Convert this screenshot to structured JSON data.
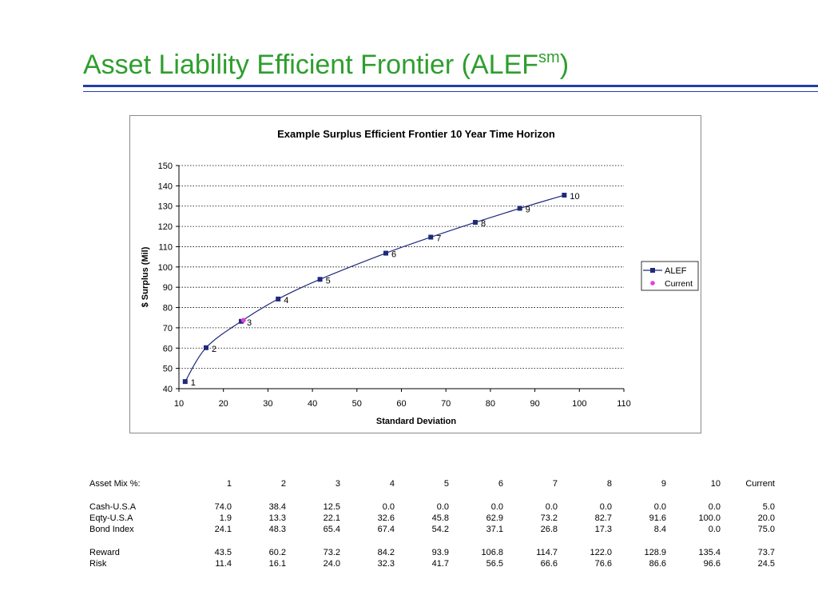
{
  "slide": {
    "title_main": "Asset Liability Efficient Frontier (ALEF",
    "title_sup": "sm",
    "title_end": ")"
  },
  "chart_data": {
    "type": "line",
    "title": "Example Surplus Efficient Frontier 10 Year Time Horizon",
    "xlabel": "Standard Deviation",
    "ylabel": "$ Surplus (Mil)",
    "xlim": [
      10,
      110
    ],
    "ylim": [
      40,
      150
    ],
    "xticks": [
      10,
      20,
      30,
      40,
      50,
      60,
      70,
      80,
      90,
      100,
      110
    ],
    "yticks": [
      40,
      50,
      60,
      70,
      80,
      90,
      100,
      110,
      120,
      130,
      140,
      150
    ],
    "grid": "horizontal-dotted",
    "legend_position": "right",
    "series": [
      {
        "name": "ALEF",
        "color": "#1f2a7a",
        "marker": "square",
        "labels": [
          "1",
          "2",
          "3",
          "4",
          "5",
          "6",
          "7",
          "8",
          "9",
          "10"
        ],
        "x": [
          11.4,
          16.1,
          24.0,
          32.3,
          41.7,
          56.5,
          66.6,
          76.6,
          86.6,
          96.6
        ],
        "y": [
          43.5,
          60.2,
          73.2,
          84.2,
          93.9,
          106.8,
          114.7,
          122.0,
          128.9,
          135.4
        ]
      },
      {
        "name": "Current",
        "color": "#e040e0",
        "marker": "dot",
        "x": [
          24.5
        ],
        "y": [
          73.7
        ]
      }
    ]
  },
  "table": {
    "header_label": "Asset Mix %:",
    "columns": [
      "1",
      "2",
      "3",
      "4",
      "5",
      "6",
      "7",
      "8",
      "9",
      "10",
      "Current"
    ],
    "groups": [
      [
        {
          "label": "Cash-U.S.A",
          "values": [
            "74.0",
            "38.4",
            "12.5",
            "0.0",
            "0.0",
            "0.0",
            "0.0",
            "0.0",
            "0.0",
            "0.0",
            "5.0"
          ]
        },
        {
          "label": "Eqty-U.S.A",
          "values": [
            "1.9",
            "13.3",
            "22.1",
            "32.6",
            "45.8",
            "62.9",
            "73.2",
            "82.7",
            "91.6",
            "100.0",
            "20.0"
          ]
        },
        {
          "label": "Bond Index",
          "values": [
            "24.1",
            "48.3",
            "65.4",
            "67.4",
            "54.2",
            "37.1",
            "26.8",
            "17.3",
            "8.4",
            "0.0",
            "75.0"
          ]
        }
      ],
      [
        {
          "label": "Reward",
          "values": [
            "43.5",
            "60.2",
            "73.2",
            "84.2",
            "93.9",
            "106.8",
            "114.7",
            "122.0",
            "128.9",
            "135.4",
            "73.7"
          ]
        },
        {
          "label": "Risk",
          "values": [
            "11.4",
            "16.1",
            "24.0",
            "32.3",
            "41.7",
            "56.5",
            "66.6",
            "76.6",
            "86.6",
            "96.6",
            "24.5"
          ]
        }
      ]
    ]
  }
}
